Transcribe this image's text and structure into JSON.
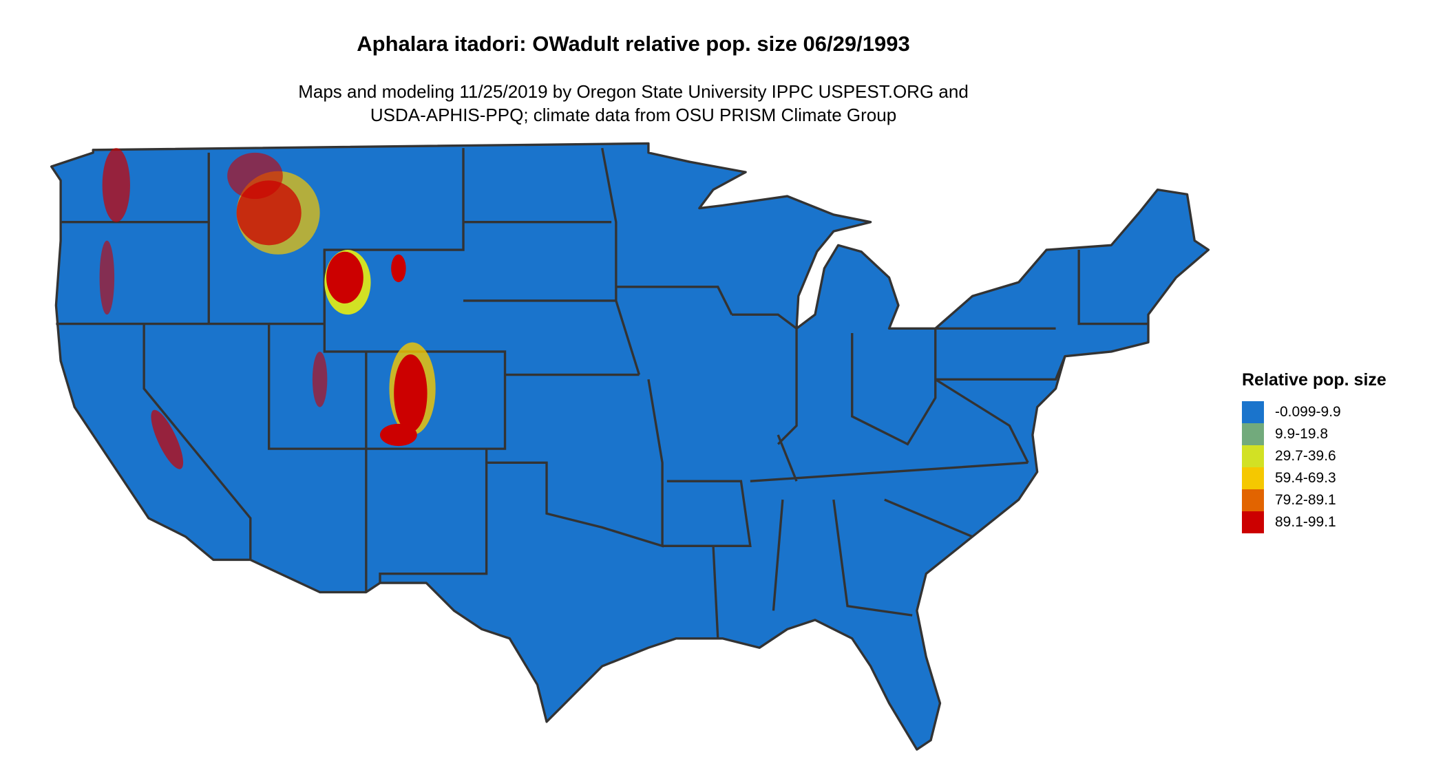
{
  "title": "Aphalara itadori: OWadult relative pop. size 06/29/1993",
  "subtitle_line1": "Maps and modeling 11/25/2019 by Oregon State University IPPC USPEST.ORG and",
  "subtitle_line2": "USDA-APHIS-PPQ; climate data from OSU PRISM Climate Group",
  "legend": {
    "title": "Relative pop. size",
    "items": [
      {
        "label": "-0.099-9.9",
        "color": "#1a74cc"
      },
      {
        "label": "9.9-19.8",
        "color": "#72aa7c"
      },
      {
        "label": "29.7-39.6",
        "color": "#d2e124"
      },
      {
        "label": "59.4-69.3",
        "color": "#f5c800"
      },
      {
        "label": "79.2-89.1",
        "color": "#e26400"
      },
      {
        "label": "89.1-99.1",
        "color": "#cc0000"
      }
    ]
  },
  "colors": {
    "border": "#333333",
    "background": "#ffffff"
  }
}
